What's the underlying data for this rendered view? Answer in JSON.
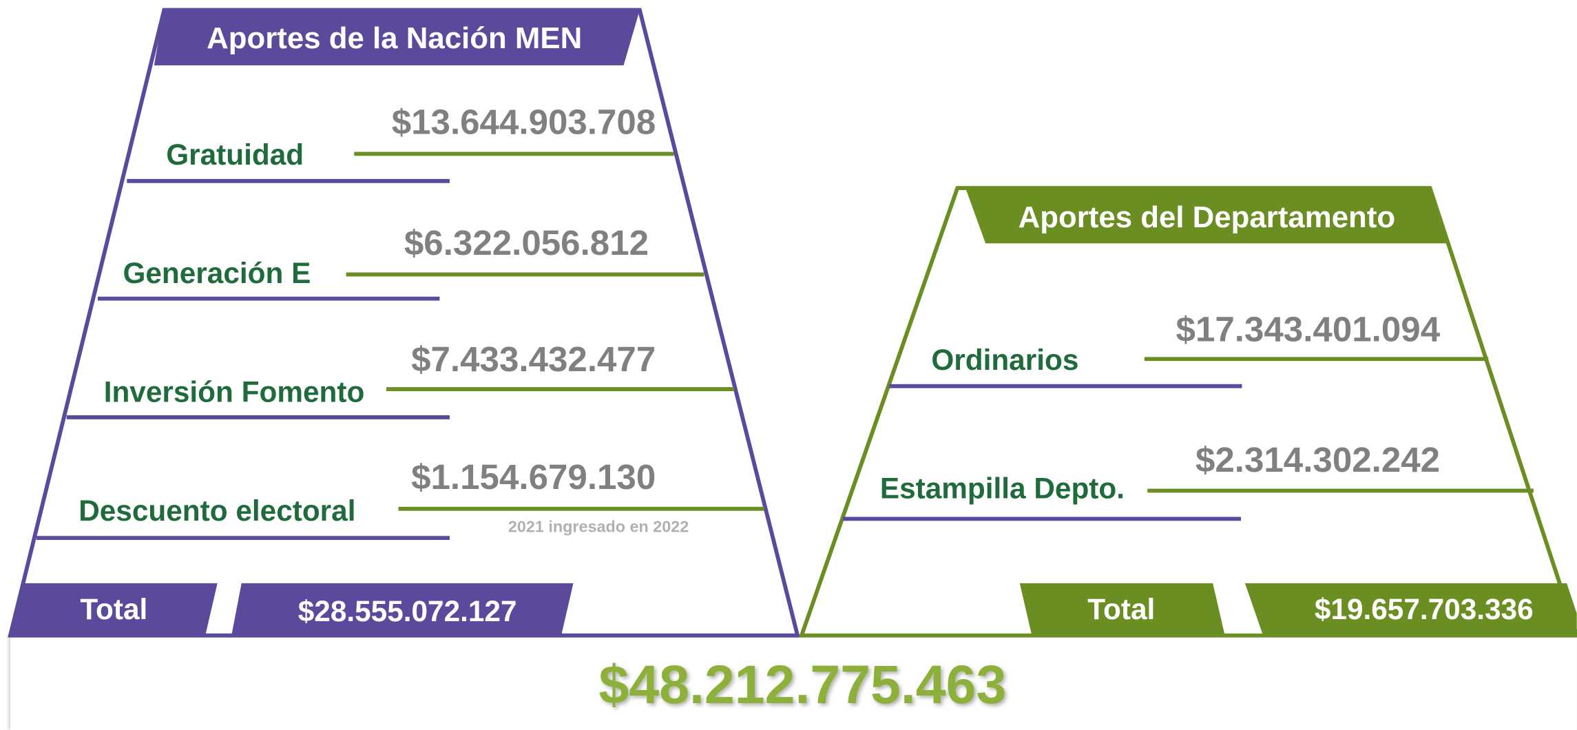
{
  "left": {
    "title": "Aportes de la Nación MEN",
    "items": [
      {
        "label": "Gratuidad",
        "value": "$13.644.903.708"
      },
      {
        "label": "Generación E",
        "value": "$6.322.056.812"
      },
      {
        "label": "Inversión Fomento",
        "value": "$7.433.432.477"
      },
      {
        "label": "Descuento electoral",
        "value": "$1.154.679.130",
        "note": "2021 ingresado en 2022"
      }
    ],
    "total_label": "Total",
    "total_value": "$28.555.072.127"
  },
  "right": {
    "title": "Aportes del Departamento",
    "items": [
      {
        "label": "Ordinarios",
        "value": "$17.343.401.094"
      },
      {
        "label": "Estampilla Depto.",
        "value": "$2.314.302.242"
      }
    ],
    "total_label": "Total",
    "total_value": "$19.657.703.336"
  },
  "grand_total": "$48.212.775.463"
}
